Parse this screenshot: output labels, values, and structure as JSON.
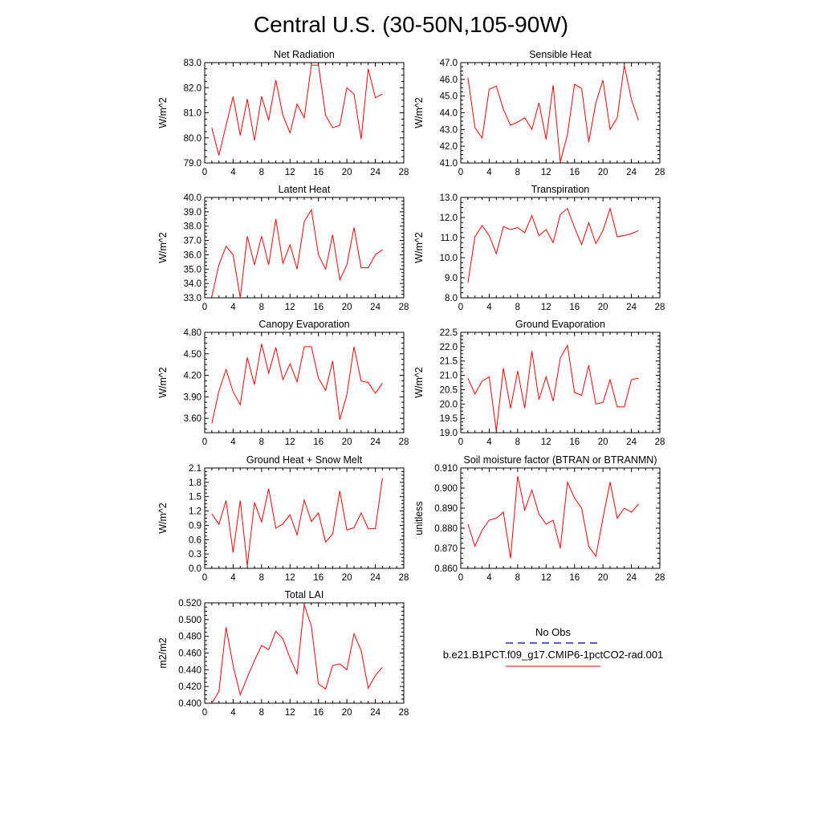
{
  "figure": {
    "title": "Central U.S. (30-50N,105-90W)"
  },
  "colors": {
    "model_line": "#ff0000",
    "obs_line": "#00008b",
    "axes": "#000000"
  },
  "legend": {
    "obs_label": "No Obs",
    "model_label": "b.e21.B1PCT.f09_g17.CMIP6-1pctCO2-rad.001"
  },
  "chart_data": [
    {
      "type": "line",
      "title": "Net Radiation",
      "ylabel": "W/m^2",
      "xlim": [
        0,
        28
      ],
      "xticks": [
        0,
        4,
        8,
        12,
        16,
        20,
        24,
        28
      ],
      "ylim": [
        79.0,
        83.0
      ],
      "yticks": [
        79.0,
        80.0,
        81.0,
        82.0,
        83.0
      ],
      "yticklabels": [
        "79.0",
        "80.0",
        "81.0",
        "82.0",
        "83.0"
      ],
      "series": [
        {
          "x": [
            1,
            2,
            3,
            4,
            5,
            6,
            7,
            8,
            9,
            10,
            11,
            12,
            13,
            14,
            15,
            16,
            17,
            18,
            19,
            20,
            21,
            22,
            23,
            24,
            25
          ],
          "values": [
            80.4,
            79.3,
            80.5,
            81.65,
            80.1,
            81.55,
            79.9,
            81.65,
            80.7,
            82.3,
            80.9,
            80.2,
            81.35,
            80.8,
            82.9,
            82.9,
            80.9,
            80.4,
            80.5,
            82.0,
            81.75,
            79.95,
            82.75,
            81.6,
            81.75
          ]
        }
      ]
    },
    {
      "type": "line",
      "title": "Sensible Heat",
      "ylabel": "W/m^2",
      "xlim": [
        0,
        28
      ],
      "xticks": [
        0,
        4,
        8,
        12,
        16,
        20,
        24,
        28
      ],
      "ylim": [
        41.0,
        47.0
      ],
      "yticks": [
        41.0,
        42.0,
        43.0,
        44.0,
        45.0,
        46.0,
        47.0
      ],
      "yticklabels": [
        "41.0",
        "42.0",
        "43.0",
        "44.0",
        "45.0",
        "46.0",
        "47.0"
      ],
      "series": [
        {
          "x": [
            1,
            2,
            3,
            4,
            5,
            6,
            7,
            8,
            9,
            10,
            11,
            12,
            13,
            14,
            15,
            16,
            17,
            18,
            19,
            20,
            21,
            22,
            23,
            24,
            25
          ],
          "values": [
            46.1,
            43.1,
            42.5,
            45.4,
            45.6,
            44.2,
            43.25,
            43.45,
            43.7,
            43.0,
            44.6,
            42.4,
            45.65,
            41.05,
            42.7,
            45.7,
            45.45,
            42.25,
            44.6,
            45.95,
            43.0,
            43.7,
            46.85,
            44.8,
            43.55
          ]
        }
      ]
    },
    {
      "type": "line",
      "title": "Latent Heat",
      "ylabel": "W/m^2",
      "xlim": [
        0,
        28
      ],
      "xticks": [
        0,
        4,
        8,
        12,
        16,
        20,
        24,
        28
      ],
      "ylim": [
        33.0,
        40.0
      ],
      "yticks": [
        33.0,
        34.0,
        35.0,
        36.0,
        37.0,
        38.0,
        39.0,
        40.0
      ],
      "yticklabels": [
        "33.0",
        "34.0",
        "35.0",
        "36.0",
        "37.0",
        "38.0",
        "39.0",
        "40.0"
      ],
      "series": [
        {
          "x": [
            1,
            2,
            3,
            4,
            5,
            6,
            7,
            8,
            9,
            10,
            11,
            12,
            13,
            14,
            15,
            16,
            17,
            18,
            19,
            20,
            21,
            22,
            23,
            24,
            25
          ],
          "values": [
            33.1,
            35.3,
            36.6,
            36.0,
            33.0,
            37.3,
            35.3,
            37.3,
            35.3,
            38.5,
            35.4,
            36.7,
            35.0,
            38.3,
            39.15,
            36.0,
            35.0,
            37.4,
            34.25,
            35.3,
            37.9,
            35.1,
            35.1,
            36.0,
            36.35
          ]
        }
      ]
    },
    {
      "type": "line",
      "title": "Transpiration",
      "ylabel": "W/m^2",
      "xlim": [
        0,
        28
      ],
      "xticks": [
        0,
        4,
        8,
        12,
        16,
        20,
        24,
        28
      ],
      "ylim": [
        8.0,
        13.0
      ],
      "yticks": [
        8.0,
        9.0,
        10.0,
        11.0,
        12.0,
        13.0
      ],
      "yticklabels": [
        "8.0",
        "9.0",
        "10.0",
        "11.0",
        "12.0",
        "13.0"
      ],
      "series": [
        {
          "x": [
            1,
            2,
            3,
            4,
            5,
            6,
            7,
            8,
            9,
            10,
            11,
            12,
            13,
            14,
            15,
            16,
            17,
            18,
            19,
            20,
            21,
            22,
            23,
            24,
            25
          ],
          "values": [
            8.75,
            11.05,
            11.6,
            11.1,
            10.2,
            11.55,
            11.4,
            11.5,
            11.25,
            12.1,
            11.1,
            11.4,
            10.75,
            12.15,
            12.45,
            11.5,
            10.65,
            11.75,
            10.7,
            11.35,
            12.45,
            11.05,
            11.1,
            11.2,
            11.35
          ]
        }
      ]
    },
    {
      "type": "line",
      "title": "Canopy Evaporation",
      "ylabel": "W/m^2",
      "xlim": [
        0,
        28
      ],
      "xticks": [
        0,
        4,
        8,
        12,
        16,
        20,
        24,
        28
      ],
      "ylim": [
        3.4,
        4.8
      ],
      "yticks": [
        3.6,
        3.9,
        4.2,
        4.5,
        4.8
      ],
      "yticklabels": [
        "3.60",
        "3.90",
        "4.20",
        "4.50",
        "4.80"
      ],
      "series": [
        {
          "x": [
            1,
            2,
            3,
            4,
            5,
            6,
            7,
            8,
            9,
            10,
            11,
            12,
            13,
            14,
            15,
            16,
            17,
            18,
            19,
            20,
            21,
            22,
            23,
            24,
            25
          ],
          "values": [
            3.53,
            3.98,
            4.28,
            3.97,
            3.79,
            4.45,
            4.07,
            4.64,
            4.23,
            4.59,
            4.14,
            4.36,
            4.11,
            4.6,
            4.6,
            4.16,
            3.99,
            4.4,
            3.58,
            3.93,
            4.6,
            4.12,
            4.1,
            3.95,
            4.09
          ]
        }
      ]
    },
    {
      "type": "line",
      "title": "Ground Evaporation",
      "ylabel": "W/m^2",
      "xlim": [
        0,
        28
      ],
      "xticks": [
        0,
        4,
        8,
        12,
        16,
        20,
        24,
        28
      ],
      "ylim": [
        19.0,
        22.5
      ],
      "yticks": [
        19.0,
        19.5,
        20.0,
        20.5,
        21.0,
        21.5,
        22.0,
        22.5
      ],
      "yticklabels": [
        "19.0",
        "19.5",
        "20.0",
        "20.5",
        "21.0",
        "21.5",
        "22.0",
        "22.5"
      ],
      "series": [
        {
          "x": [
            1,
            2,
            3,
            4,
            5,
            6,
            7,
            8,
            9,
            10,
            11,
            12,
            13,
            14,
            15,
            16,
            17,
            18,
            19,
            20,
            21,
            22,
            23,
            24,
            25
          ],
          "values": [
            20.9,
            20.35,
            20.8,
            20.95,
            19.05,
            21.25,
            19.85,
            21.15,
            19.85,
            21.85,
            20.15,
            20.95,
            20.1,
            21.6,
            22.05,
            20.4,
            20.3,
            21.35,
            20.0,
            20.05,
            20.85,
            19.9,
            19.9,
            20.85,
            20.9
          ]
        }
      ]
    },
    {
      "type": "line",
      "title": "Ground Heat + Snow Melt",
      "ylabel": "W/m^2",
      "xlim": [
        0,
        28
      ],
      "xticks": [
        0,
        4,
        8,
        12,
        16,
        20,
        24,
        28
      ],
      "ylim": [
        0.0,
        2.1
      ],
      "yticks": [
        0.0,
        0.3,
        0.6,
        0.9,
        1.2,
        1.5,
        1.8,
        2.1
      ],
      "yticklabels": [
        "0.0",
        "0.3",
        "0.6",
        "0.9",
        "1.2",
        "1.5",
        "1.8",
        "2.1"
      ],
      "series": [
        {
          "x": [
            1,
            2,
            3,
            4,
            5,
            6,
            7,
            8,
            9,
            10,
            11,
            12,
            13,
            14,
            15,
            16,
            17,
            18,
            19,
            20,
            21,
            22,
            23,
            24,
            25
          ],
          "values": [
            1.14,
            0.92,
            1.42,
            0.33,
            1.42,
            0.05,
            1.38,
            0.97,
            1.67,
            0.84,
            0.93,
            1.12,
            0.7,
            1.43,
            0.98,
            1.16,
            0.55,
            0.72,
            1.62,
            0.8,
            0.85,
            1.16,
            0.83,
            0.83,
            1.89
          ]
        }
      ]
    },
    {
      "type": "line",
      "title": "Soil moisture factor (BTRAN or BTRANMN)",
      "ylabel": "unitless",
      "xlim": [
        0,
        28
      ],
      "xticks": [
        0,
        4,
        8,
        12,
        16,
        20,
        24,
        28
      ],
      "ylim": [
        0.86,
        0.91
      ],
      "yticks": [
        0.86,
        0.87,
        0.88,
        0.89,
        0.9,
        0.91
      ],
      "yticklabels": [
        "0.860",
        "0.870",
        "0.880",
        "0.890",
        "0.900",
        "0.910"
      ],
      "series": [
        {
          "x": [
            1,
            2,
            3,
            4,
            5,
            6,
            7,
            8,
            9,
            10,
            11,
            12,
            13,
            14,
            15,
            16,
            17,
            18,
            19,
            20,
            21,
            22,
            23,
            24,
            25
          ],
          "values": [
            0.882,
            0.871,
            0.879,
            0.884,
            0.885,
            0.888,
            0.865,
            0.906,
            0.889,
            0.899,
            0.887,
            0.882,
            0.884,
            0.87,
            0.903,
            0.895,
            0.89,
            0.871,
            0.866,
            0.885,
            0.903,
            0.885,
            0.89,
            0.888,
            0.892
          ]
        }
      ]
    },
    {
      "type": "line",
      "title": "Total LAI",
      "ylabel": "m2/m2",
      "xlim": [
        0,
        28
      ],
      "xticks": [
        0,
        4,
        8,
        12,
        16,
        20,
        24,
        28
      ],
      "ylim": [
        0.4,
        0.52
      ],
      "yticks": [
        0.4,
        0.42,
        0.44,
        0.46,
        0.48,
        0.5,
        0.52
      ],
      "yticklabels": [
        "0.400",
        "0.420",
        "0.440",
        "0.460",
        "0.480",
        "0.500",
        "0.520"
      ],
      "series": [
        {
          "x": [
            1,
            2,
            3,
            4,
            5,
            6,
            7,
            8,
            9,
            10,
            11,
            12,
            13,
            14,
            15,
            16,
            17,
            18,
            19,
            20,
            21,
            22,
            23,
            24,
            25
          ],
          "values": [
            0.4,
            0.414,
            0.491,
            0.445,
            0.41,
            0.431,
            0.451,
            0.469,
            0.464,
            0.486,
            0.477,
            0.454,
            0.435,
            0.518,
            0.492,
            0.423,
            0.417,
            0.445,
            0.447,
            0.44,
            0.483,
            0.463,
            0.418,
            0.433,
            0.443
          ]
        }
      ]
    }
  ]
}
